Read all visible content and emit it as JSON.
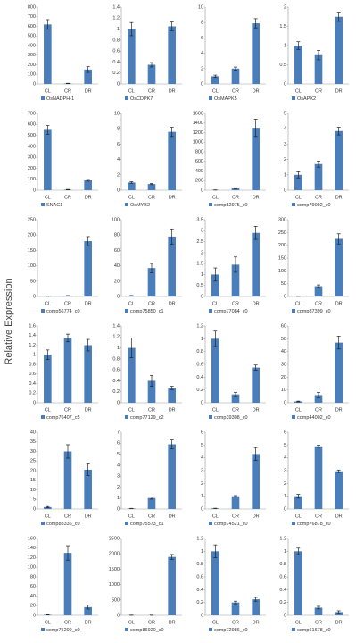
{
  "y_label": "Relative Expression",
  "chart_data": [
    {
      "type": "bar",
      "categories": [
        "CL",
        "CR",
        "DR"
      ],
      "series": [
        {
          "name": "OsNADPH-1",
          "color": "#4a7ebb",
          "values": [
            620,
            5,
            150
          ],
          "errors": [
            50,
            2,
            30
          ]
        }
      ],
      "ylim": [
        0,
        800
      ],
      "yticks": [
        0,
        100,
        200,
        300,
        400,
        500,
        600,
        700,
        800
      ]
    },
    {
      "type": "bar",
      "categories": [
        "CL",
        "CR",
        "DR"
      ],
      "series": [
        {
          "name": "OsCDPK7",
          "color": "#4a7ebb",
          "values": [
            1.0,
            0.35,
            1.05
          ],
          "errors": [
            0.12,
            0.04,
            0.08
          ]
        }
      ],
      "ylim": [
        0,
        1.4
      ],
      "yticks": [
        0,
        0.2,
        0.4,
        0.6,
        0.8,
        1,
        1.2,
        1.4
      ]
    },
    {
      "type": "bar",
      "categories": [
        "CL",
        "CR",
        "DR"
      ],
      "series": [
        {
          "name": "OsMAPK5",
          "color": "#4a7ebb",
          "values": [
            1.0,
            2.0,
            7.9
          ],
          "errors": [
            0.15,
            0.2,
            0.6
          ]
        }
      ],
      "ylim": [
        0,
        10
      ],
      "yticks": [
        0,
        2,
        4,
        6,
        8,
        10
      ]
    },
    {
      "type": "bar",
      "categories": [
        "CL",
        "CR",
        "DR"
      ],
      "series": [
        {
          "name": "OsAPX2",
          "color": "#4a7ebb",
          "values": [
            1.0,
            0.75,
            1.75
          ],
          "errors": [
            0.1,
            0.12,
            0.12
          ]
        }
      ],
      "ylim": [
        0,
        2
      ],
      "yticks": [
        0,
        0.5,
        1,
        1.5,
        2
      ]
    },
    {
      "type": "bar",
      "categories": [
        "CL",
        "CR",
        "DR"
      ],
      "series": [
        {
          "name": "SNAC1",
          "color": "#4a7ebb",
          "values": [
            550,
            5,
            90
          ],
          "errors": [
            40,
            2,
            8
          ]
        }
      ],
      "ylim": [
        0,
        700
      ],
      "yticks": [
        0,
        100,
        200,
        300,
        400,
        500,
        600,
        700
      ]
    },
    {
      "type": "bar",
      "categories": [
        "CL",
        "CR",
        "DR"
      ],
      "series": [
        {
          "name": "OsMYB2",
          "color": "#4a7ebb",
          "values": [
            1.0,
            0.8,
            7.6
          ],
          "errors": [
            0.1,
            0.08,
            0.6
          ]
        }
      ],
      "ylim": [
        0,
        10
      ],
      "yticks": [
        0,
        2,
        4,
        6,
        8,
        10
      ]
    },
    {
      "type": "bar",
      "categories": [
        "CL",
        "CR",
        "DR"
      ],
      "series": [
        {
          "name": "comp52975_c0",
          "color": "#4a7ebb",
          "values": [
            5,
            40,
            1300
          ],
          "errors": [
            2,
            10,
            180
          ]
        }
      ],
      "ylim": [
        0,
        1600
      ],
      "yticks": [
        0,
        200,
        400,
        600,
        800,
        1000,
        1200,
        1400,
        1600
      ]
    },
    {
      "type": "bar",
      "categories": [
        "CL",
        "CR",
        "DR"
      ],
      "series": [
        {
          "name": "comp79092_c0",
          "color": "#4a7ebb",
          "values": [
            1.0,
            1.7,
            3.85
          ],
          "errors": [
            0.2,
            0.2,
            0.25
          ]
        }
      ],
      "ylim": [
        0,
        5
      ],
      "yticks": [
        0,
        1,
        2,
        3,
        4,
        5
      ]
    },
    {
      "type": "bar",
      "categories": [
        "CL",
        "CR",
        "DR"
      ],
      "series": [
        {
          "name": "comp56774_c0",
          "color": "#4a7ebb",
          "values": [
            1,
            2,
            180
          ],
          "errors": [
            0.5,
            1,
            15
          ]
        }
      ],
      "ylim": [
        0,
        250
      ],
      "yticks": [
        0,
        50,
        100,
        150,
        200,
        250
      ]
    },
    {
      "type": "bar",
      "categories": [
        "CL",
        "CR",
        "DR"
      ],
      "series": [
        {
          "name": "comp75850_c1",
          "color": "#4a7ebb",
          "values": [
            1,
            37,
            78
          ],
          "errors": [
            0.3,
            6,
            10
          ]
        }
      ],
      "ylim": [
        0,
        100
      ],
      "yticks": [
        0,
        20,
        40,
        60,
        80,
        100
      ]
    },
    {
      "type": "bar",
      "categories": [
        "CL",
        "CR",
        "DR"
      ],
      "series": [
        {
          "name": "comp77084_c0",
          "color": "#4a7ebb",
          "values": [
            1.0,
            1.45,
            2.9
          ],
          "errors": [
            0.3,
            0.35,
            0.3
          ]
        }
      ],
      "ylim": [
        0,
        3.5
      ],
      "yticks": [
        0,
        0.5,
        1,
        1.5,
        2,
        2.5,
        3,
        3.5
      ]
    },
    {
      "type": "bar",
      "categories": [
        "CL",
        "CR",
        "DR"
      ],
      "series": [
        {
          "name": "comp87399_c0",
          "color": "#4a7ebb",
          "values": [
            1,
            40,
            225
          ],
          "errors": [
            0.5,
            5,
            20
          ]
        }
      ],
      "ylim": [
        0,
        300
      ],
      "yticks": [
        0,
        50,
        100,
        150,
        200,
        250,
        300
      ]
    },
    {
      "type": "bar",
      "categories": [
        "CL",
        "CR",
        "DR"
      ],
      "series": [
        {
          "name": "comp76407_c5",
          "color": "#4a7ebb",
          "values": [
            1.0,
            1.35,
            1.2
          ],
          "errors": [
            0.1,
            0.08,
            0.12
          ]
        }
      ],
      "ylim": [
        0,
        1.6
      ],
      "yticks": [
        0,
        0.2,
        0.4,
        0.6,
        0.8,
        1,
        1.2,
        1.4,
        1.6
      ]
    },
    {
      "type": "bar",
      "categories": [
        "CL",
        "CR",
        "DR"
      ],
      "series": [
        {
          "name": "comp77129_c2",
          "color": "#4a7ebb",
          "values": [
            1.0,
            0.4,
            0.27
          ],
          "errors": [
            0.18,
            0.1,
            0.03
          ]
        }
      ],
      "ylim": [
        0,
        1.4
      ],
      "yticks": [
        0,
        0.2,
        0.4,
        0.6,
        0.8,
        1,
        1.2,
        1.4
      ]
    },
    {
      "type": "bar",
      "categories": [
        "CL",
        "CR",
        "DR"
      ],
      "series": [
        {
          "name": "comp39308_c0",
          "color": "#4a7ebb",
          "values": [
            1.0,
            0.13,
            0.55
          ],
          "errors": [
            0.12,
            0.03,
            0.04
          ]
        }
      ],
      "ylim": [
        0,
        1.2
      ],
      "yticks": [
        0,
        0.2,
        0.4,
        0.6,
        0.8,
        1,
        1.2
      ]
    },
    {
      "type": "bar",
      "categories": [
        "CL",
        "CR",
        "DR"
      ],
      "series": [
        {
          "name": "comp44002_c0",
          "color": "#4a7ebb",
          "values": [
            1,
            6,
            47
          ],
          "errors": [
            0.3,
            2,
            5
          ]
        }
      ],
      "ylim": [
        0,
        60
      ],
      "yticks": [
        0,
        10,
        20,
        30,
        40,
        50,
        60
      ]
    },
    {
      "type": "bar",
      "categories": [
        "CL",
        "CR",
        "DR"
      ],
      "series": [
        {
          "name": "comp88336_c0",
          "color": "#4a7ebb",
          "values": [
            1,
            30,
            20.5
          ],
          "errors": [
            0.3,
            3.5,
            3
          ]
        }
      ],
      "ylim": [
        0,
        40
      ],
      "yticks": [
        0,
        5,
        10,
        15,
        20,
        25,
        30,
        35,
        40
      ]
    },
    {
      "type": "bar",
      "categories": [
        "CL",
        "CR",
        "DR"
      ],
      "series": [
        {
          "name": "comp75573_c1",
          "color": "#4a7ebb",
          "values": [
            0.05,
            1.0,
            5.9
          ],
          "errors": [
            0.01,
            0.1,
            0.4
          ]
        }
      ],
      "ylim": [
        0,
        7
      ],
      "yticks": [
        0,
        1,
        2,
        3,
        4,
        5,
        6,
        7
      ]
    },
    {
      "type": "bar",
      "categories": [
        "CL",
        "CR",
        "DR"
      ],
      "series": [
        {
          "name": "comp74521_c0",
          "color": "#4a7ebb",
          "values": [
            0.05,
            1.0,
            4.3
          ],
          "errors": [
            0.01,
            0.05,
            0.5
          ]
        }
      ],
      "ylim": [
        0,
        6
      ],
      "yticks": [
        0,
        1,
        2,
        3,
        4,
        5,
        6
      ]
    },
    {
      "type": "bar",
      "categories": [
        "CL",
        "CR",
        "DR"
      ],
      "series": [
        {
          "name": "comp76878_c0",
          "color": "#4a7ebb",
          "values": [
            1.0,
            4.9,
            2.95
          ],
          "errors": [
            0.15,
            0.08,
            0.1
          ]
        }
      ],
      "ylim": [
        0,
        6
      ],
      "yticks": [
        0,
        1,
        2,
        3,
        4,
        5,
        6
      ]
    },
    {
      "type": "bar",
      "categories": [
        "CL",
        "CR",
        "DR"
      ],
      "series": [
        {
          "name": "comp75209_c0",
          "color": "#4a7ebb",
          "values": [
            1,
            130,
            17
          ],
          "errors": [
            0.3,
            15,
            4
          ]
        }
      ],
      "ylim": [
        0,
        160
      ],
      "yticks": [
        0,
        20,
        40,
        60,
        80,
        100,
        120,
        140,
        160
      ]
    },
    {
      "type": "bar",
      "categories": [
        "CL",
        "CR",
        "DR"
      ],
      "series": [
        {
          "name": "comp86920_c0",
          "color": "#4a7ebb",
          "values": [
            5,
            5,
            1900
          ],
          "errors": [
            2,
            2,
            80
          ]
        }
      ],
      "ylim": [
        0,
        2500
      ],
      "yticks": [
        0,
        500,
        1000,
        1500,
        2000,
        2500
      ]
    },
    {
      "type": "bar",
      "categories": [
        "CL",
        "CR",
        "DR"
      ],
      "series": [
        {
          "name": "comp72986_c0",
          "color": "#4a7ebb",
          "values": [
            1.0,
            0.2,
            0.25
          ],
          "errors": [
            0.1,
            0.02,
            0.03
          ]
        }
      ],
      "ylim": [
        0,
        1.2
      ],
      "yticks": [
        0,
        0.2,
        0.4,
        0.6,
        0.8,
        1,
        1.2
      ]
    },
    {
      "type": "bar",
      "categories": [
        "CL",
        "CR",
        "DR"
      ],
      "series": [
        {
          "name": "comp61678_c0",
          "color": "#4a7ebb",
          "values": [
            1.0,
            0.12,
            0.05
          ],
          "errors": [
            0.05,
            0.02,
            0.02
          ]
        }
      ],
      "ylim": [
        0,
        1.2
      ],
      "yticks": [
        0,
        0.2,
        0.4,
        0.6,
        0.8,
        1,
        1.2
      ]
    }
  ]
}
